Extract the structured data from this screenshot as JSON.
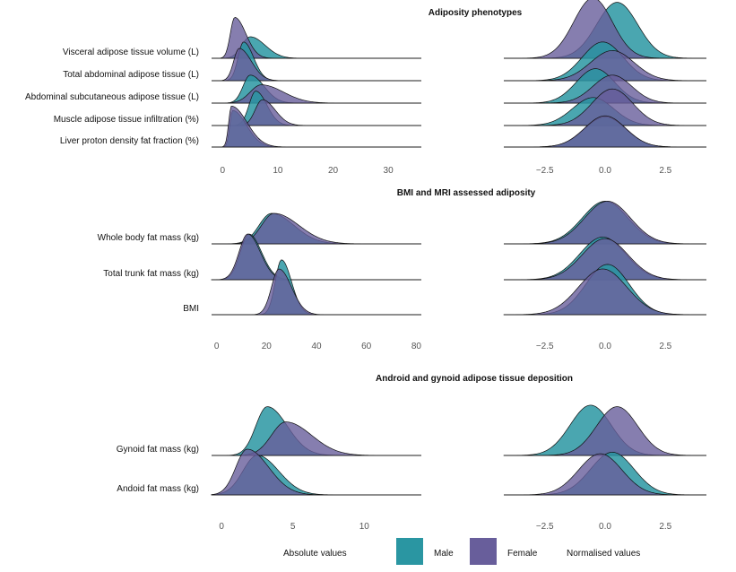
{
  "colors": {
    "male": "#2a96a2",
    "female": "#685e9b",
    "outline": "#111111"
  },
  "chart_data": [
    {
      "type": "ridgeline",
      "title": "Adiposity phenotypes",
      "rows": [
        {
          "label": "Visceral adipose tissue volume (L)",
          "male": {
            "peak": 5,
            "left_sd": 1.5,
            "right_sd": 2.7,
            "height": 1.0
          },
          "female": {
            "peak": 2.2,
            "left_sd": 0.8,
            "right_sd": 2.0,
            "height": 1.9
          },
          "norm_male": {
            "mean": 0.5,
            "sd": 0.85,
            "height": 2.6
          },
          "norm_female": {
            "mean": -0.5,
            "sd": 0.8,
            "height": 2.8
          }
        },
        {
          "label": "Total abdominal adipose tissue (L)",
          "male": {
            "peak": 3.8,
            "left_sd": 1.0,
            "right_sd": 1.8,
            "height": 1.8
          },
          "female": {
            "peak": 3.0,
            "left_sd": 1.0,
            "right_sd": 2.2,
            "height": 1.5
          },
          "norm_male": {
            "mean": -0.1,
            "sd": 0.85,
            "height": 1.8
          },
          "norm_female": {
            "mean": 0.3,
            "sd": 0.9,
            "height": 1.4
          }
        },
        {
          "label": "Abdominal subcutaneous adipose tissue (L)",
          "male": {
            "peak": 5.0,
            "left_sd": 1.3,
            "right_sd": 2.5,
            "height": 1.3
          },
          "female": {
            "peak": 7.0,
            "left_sd": 2.0,
            "right_sd": 4.0,
            "height": 0.85
          },
          "norm_male": {
            "mean": -0.4,
            "sd": 0.8,
            "height": 1.6
          },
          "norm_female": {
            "mean": 0.3,
            "sd": 0.8,
            "height": 1.3
          }
        },
        {
          "label": "Muscle adipose tissue infiltration (%)",
          "male": {
            "peak": 6.0,
            "left_sd": 1.2,
            "right_sd": 2.0,
            "height": 1.6
          },
          "female": {
            "peak": 7.2,
            "left_sd": 1.3,
            "right_sd": 2.3,
            "height": 1.2
          },
          "norm_male": {
            "mean": -0.5,
            "sd": 0.85,
            "height": 1.3
          },
          "norm_female": {
            "mean": 0.3,
            "sd": 0.85,
            "height": 1.7
          }
        },
        {
          "label": "Liver proton density fat fraction (%)",
          "male": {
            "peak": 1.8,
            "left_sd": 0.5,
            "right_sd": 2.5,
            "height": 1.7
          },
          "female": {
            "peak": 1.6,
            "left_sd": 0.5,
            "right_sd": 2.8,
            "height": 1.9
          },
          "norm_male": {
            "mean": 0.0,
            "sd": 0.85,
            "height": 1.4
          },
          "norm_female": {
            "mean": 0.0,
            "sd": 0.85,
            "height": 1.45
          }
        }
      ],
      "abs_axis": {
        "ticks": [
          "0",
          "10",
          "20",
          "30"
        ],
        "xlim": [
          -2,
          36
        ]
      },
      "norm_axis": {
        "ticks": [
          "−2.5",
          "0.0",
          "2.5"
        ],
        "xlim": [
          -4.2,
          4.2
        ]
      }
    },
    {
      "type": "ridgeline",
      "title": "BMI and MRI assessed adiposity",
      "rows": [
        {
          "label": "Whole body fat mass (kg)",
          "male": {
            "peak": 22,
            "left_sd": 5,
            "right_sd": 9,
            "height": 1.0
          },
          "female": {
            "peak": 23,
            "left_sd": 5,
            "right_sd": 10,
            "height": 1.0
          },
          "norm_male": {
            "mean": 0.0,
            "sd": 0.95,
            "height": 1.4
          },
          "norm_female": {
            "mean": 0.1,
            "sd": 0.95,
            "height": 1.4
          }
        },
        {
          "label": "Total trunk fat mass (kg)",
          "male": {
            "peak": 13,
            "left_sd": 3.5,
            "right_sd": 5,
            "height": 1.5
          },
          "female": {
            "peak": 12.5,
            "left_sd": 3.5,
            "right_sd": 5,
            "height": 1.5
          },
          "norm_male": {
            "mean": -0.1,
            "sd": 0.95,
            "height": 1.4
          },
          "norm_female": {
            "mean": 0.0,
            "sd": 0.95,
            "height": 1.35
          }
        },
        {
          "label": "BMI",
          "male": {
            "peak": 26,
            "left_sd": 2.5,
            "right_sd": 4,
            "height": 1.8
          },
          "female": {
            "peak": 25,
            "left_sd": 3,
            "right_sd": 5,
            "height": 1.5
          },
          "norm_male": {
            "mean": 0.1,
            "sd": 0.9,
            "height": 1.65
          },
          "norm_female": {
            "mean": -0.1,
            "sd": 1.0,
            "height": 1.5
          }
        }
      ],
      "abs_axis": {
        "ticks": [
          "0",
          "20",
          "40",
          "60",
          "80"
        ],
        "xlim": [
          -2,
          82
        ]
      },
      "norm_axis": {
        "ticks": [
          "−2.5",
          "0.0",
          "2.5"
        ],
        "xlim": [
          -4.2,
          4.2
        ]
      }
    },
    {
      "type": "ridgeline",
      "title": "Android and gynoid adipose tissue deposition",
      "rows": [
        {
          "label": "Gynoid fat mass (kg)",
          "male": {
            "peak": 3.2,
            "left_sd": 0.8,
            "right_sd": 1.4,
            "height": 1.6
          },
          "female": {
            "peak": 4.5,
            "left_sd": 1.0,
            "right_sd": 1.8,
            "height": 1.1
          },
          "norm_male": {
            "mean": -0.6,
            "sd": 0.85,
            "height": 1.65
          },
          "norm_female": {
            "mean": 0.5,
            "sd": 0.85,
            "height": 1.6
          }
        },
        {
          "label": "Andoid fat mass (kg)",
          "male": {
            "peak": 2.5,
            "left_sd": 1.0,
            "right_sd": 1.5,
            "height": 1.3
          },
          "female": {
            "peak": 1.8,
            "left_sd": 0.8,
            "right_sd": 1.5,
            "height": 1.5
          },
          "norm_male": {
            "mean": 0.3,
            "sd": 0.9,
            "height": 1.4
          },
          "norm_female": {
            "mean": -0.2,
            "sd": 0.9,
            "height": 1.35
          }
        }
      ],
      "abs_axis": {
        "ticks": [
          "0",
          "5",
          "10"
        ],
        "xlim": [
          -0.7,
          14
        ]
      },
      "norm_axis": {
        "ticks": [
          "−2.5",
          "0.0",
          "2.5"
        ],
        "xlim": [
          -4.2,
          4.2
        ]
      }
    }
  ],
  "legend": {
    "left_label": "Absolute values",
    "male_label": "Male",
    "female_label": "Female",
    "right_label": "Normalised values"
  }
}
